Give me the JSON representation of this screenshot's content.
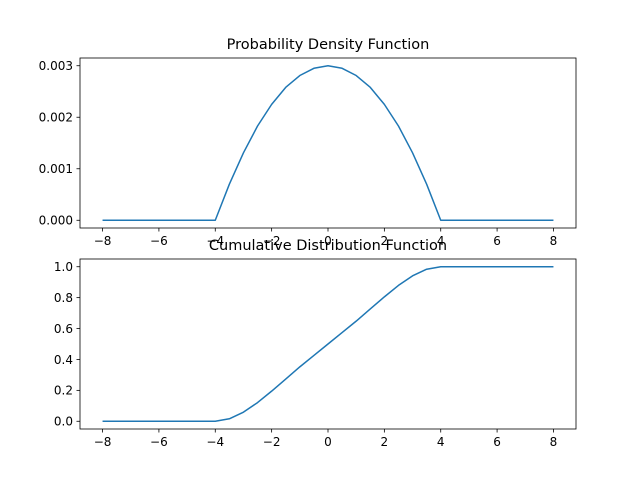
{
  "chart_data": [
    {
      "type": "line",
      "title": "Probability Density Function",
      "xlabel": "",
      "ylabel": "",
      "xlim": [
        -8.8,
        8.8
      ],
      "ylim": [
        -0.00015,
        0.00315
      ],
      "xticks": [
        -8,
        -6,
        -4,
        -2,
        0,
        2,
        4,
        6,
        8
      ],
      "xtick_labels": [
        "−8",
        "−6",
        "−4",
        "−2",
        "0",
        "2",
        "4",
        "6",
        "8"
      ],
      "yticks": [
        0,
        0.001,
        0.002,
        0.003
      ],
      "ytick_labels": [
        "0.000",
        "0.001",
        "0.002",
        "0.003"
      ],
      "grid": false,
      "color": "#1f77b4",
      "series": [
        {
          "x": [
            -8,
            -4,
            -3.5,
            -3,
            -2.5,
            -2,
            -1.5,
            -1,
            -0.5,
            0,
            0.5,
            1,
            1.5,
            2,
            2.5,
            3,
            3.5,
            4,
            8
          ],
          "values": [
            0,
            0,
            0.0007,
            0.00131,
            0.00183,
            0.00225,
            0.00258,
            0.00281,
            0.00295,
            0.003,
            0.00295,
            0.00281,
            0.00258,
            0.00225,
            0.00183,
            0.00131,
            0.0007,
            0,
            0
          ]
        }
      ]
    },
    {
      "type": "line",
      "title": "Cumulative Distribution Function",
      "xlabel": "",
      "ylabel": "",
      "xlim": [
        -8.8,
        8.8
      ],
      "ylim": [
        -0.05,
        1.05
      ],
      "xticks": [
        -8,
        -6,
        -4,
        -2,
        0,
        2,
        4,
        6,
        8
      ],
      "xtick_labels": [
        "−8",
        "−6",
        "−4",
        "−2",
        "0",
        "2",
        "4",
        "6",
        "8"
      ],
      "yticks": [
        0,
        0.2,
        0.4,
        0.6,
        0.8,
        1.0
      ],
      "ytick_labels": [
        "0.0",
        "0.2",
        "0.4",
        "0.6",
        "0.8",
        "1.0"
      ],
      "grid": false,
      "color": "#1f77b4",
      "series": [
        {
          "x": [
            -8,
            -4,
            -3.5,
            -3,
            -2.5,
            -2,
            -1.5,
            -1,
            -0.5,
            0,
            0.5,
            1,
            1.5,
            2,
            2.5,
            3,
            3.5,
            4,
            8
          ],
          "values": [
            0,
            0,
            0.016,
            0.059,
            0.121,
            0.195,
            0.273,
            0.352,
            0.426,
            0.5,
            0.574,
            0.648,
            0.727,
            0.805,
            0.879,
            0.941,
            0.984,
            1.0,
            1.0
          ]
        }
      ]
    }
  ]
}
